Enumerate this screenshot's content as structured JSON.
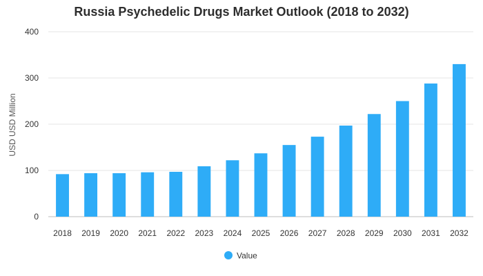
{
  "chart_data": {
    "type": "bar",
    "title": "Russia Psychedelic Drugs Market Outlook (2018 to 2032)",
    "xlabel": "",
    "ylabel": "USD USD Million",
    "categories": [
      "2018",
      "2019",
      "2020",
      "2021",
      "2022",
      "2023",
      "2024",
      "2025",
      "2026",
      "2027",
      "2028",
      "2029",
      "2030",
      "2031",
      "2032"
    ],
    "series": [
      {
        "name": "Value",
        "values": [
          92,
          94,
          94,
          96,
          97,
          109,
          122,
          137,
          155,
          173,
          197,
          222,
          250,
          288,
          330
        ],
        "color": "#2eacf7"
      }
    ],
    "ylim": [
      0,
      400
    ],
    "yticks": [
      0,
      100,
      200,
      300,
      400
    ],
    "grid": true,
    "legend_position": "bottom-center"
  }
}
